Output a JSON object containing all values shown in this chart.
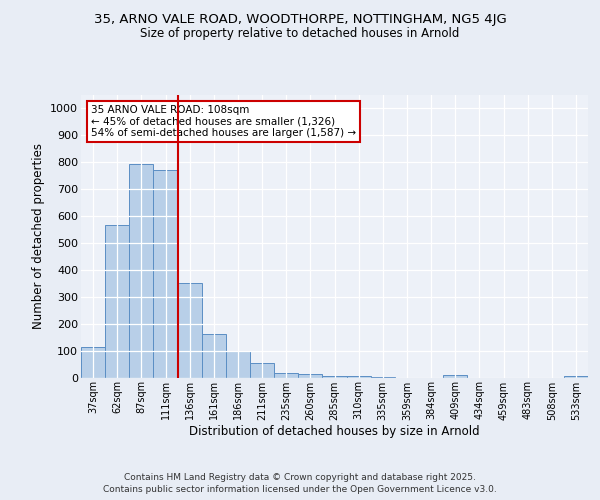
{
  "title_line1": "35, ARNO VALE ROAD, WOODTHORPE, NOTTINGHAM, NG5 4JG",
  "title_line2": "Size of property relative to detached houses in Arnold",
  "xlabel": "Distribution of detached houses by size in Arnold",
  "ylabel": "Number of detached properties",
  "categories": [
    "37sqm",
    "62sqm",
    "87sqm",
    "111sqm",
    "136sqm",
    "161sqm",
    "186sqm",
    "211sqm",
    "235sqm",
    "260sqm",
    "285sqm",
    "310sqm",
    "335sqm",
    "359sqm",
    "384sqm",
    "409sqm",
    "434sqm",
    "459sqm",
    "483sqm",
    "508sqm",
    "533sqm"
  ],
  "values": [
    115,
    568,
    793,
    770,
    351,
    163,
    99,
    53,
    18,
    12,
    7,
    7,
    2,
    0,
    0,
    8,
    0,
    0,
    0,
    0,
    4
  ],
  "bar_color": "#b8cfe8",
  "bar_edge_color": "#5b8ec4",
  "red_line_x": 3.5,
  "annotation_text": "35 ARNO VALE ROAD: 108sqm\n← 45% of detached houses are smaller (1,326)\n54% of semi-detached houses are larger (1,587) →",
  "annotation_box_color": "#ffffff",
  "annotation_box_edge_color": "#cc0000",
  "ylim": [
    0,
    1050
  ],
  "yticks": [
    0,
    100,
    200,
    300,
    400,
    500,
    600,
    700,
    800,
    900,
    1000
  ],
  "background_color": "#e8edf5",
  "plot_bg_color": "#edf1f8",
  "grid_color": "#ffffff",
  "footer_line1": "Contains HM Land Registry data © Crown copyright and database right 2025.",
  "footer_line2": "Contains public sector information licensed under the Open Government Licence v3.0."
}
